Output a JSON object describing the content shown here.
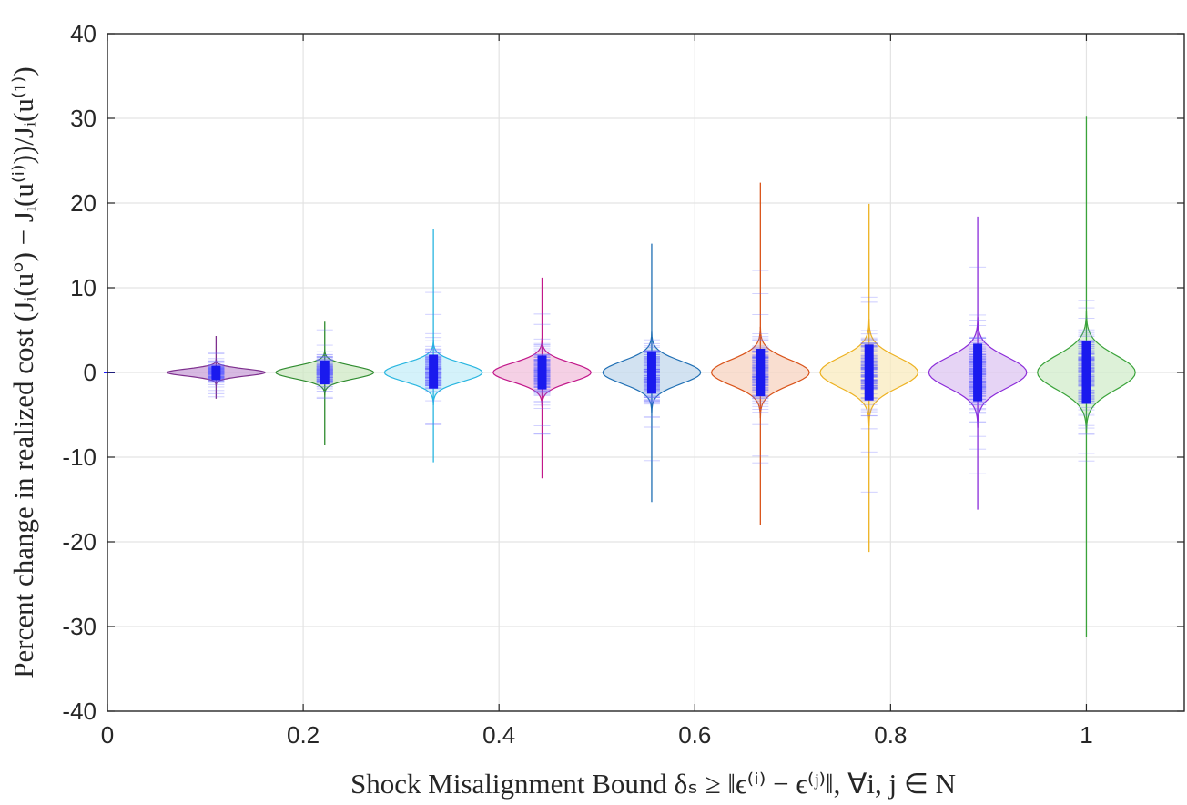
{
  "chart_data": {
    "type": "violin",
    "title": "",
    "xlabel": "Shock Misalignment Bound δₛ ≥ ‖ϵ⁽ⁱ⁾ − ϵ⁽ʲ⁾‖, ∀i, j ∈ N",
    "ylabel": "Percent change in realized cost (Jᵢ(u°) − Jᵢ(u⁽ⁱ⁾))/Jᵢ(u⁽¹⁾)",
    "xlim": [
      0,
      1.1
    ],
    "ylim": [
      -40,
      40
    ],
    "x_ticks": [
      0,
      0.2,
      0.4,
      0.6,
      0.8,
      1
    ],
    "x_tick_labels": [
      "0",
      "0.2",
      "0.4",
      "0.6",
      "0.8",
      "1"
    ],
    "y_ticks": [
      -40,
      -30,
      -20,
      -10,
      0,
      10,
      20,
      30,
      40
    ],
    "y_tick_labels": [
      "-40",
      "-30",
      "-20",
      "-10",
      "0",
      "10",
      "20",
      "30",
      "40"
    ],
    "grid": true,
    "series": [
      {
        "x": 0.111,
        "min": -3.1,
        "max": 4.3,
        "q1": -0.9,
        "q3": 0.8,
        "violin_halfwidth": 0.05,
        "violin_spread": 0.8,
        "color": "#7E2F8E",
        "fill": "#C9A2D8"
      },
      {
        "x": 0.222,
        "min": -8.6,
        "max": 6.0,
        "q1": -1.4,
        "q3": 1.4,
        "violin_halfwidth": 0.05,
        "violin_spread": 1.4,
        "color": "#2E8B2E",
        "fill": "#CFE8C4"
      },
      {
        "x": 0.333,
        "min": -10.6,
        "max": 16.9,
        "q1": -1.9,
        "q3": 2.1,
        "violin_halfwidth": 0.05,
        "violin_spread": 2.0,
        "color": "#29B6E0",
        "fill": "#C6EEF8"
      },
      {
        "x": 0.444,
        "min": -12.5,
        "max": 11.2,
        "q1": -2.0,
        "q3": 2.0,
        "violin_halfwidth": 0.05,
        "violin_spread": 2.1,
        "color": "#C2188A",
        "fill": "#F2C0DC"
      },
      {
        "x": 0.556,
        "min": -15.3,
        "max": 15.2,
        "q1": -2.5,
        "q3": 2.5,
        "violin_halfwidth": 0.05,
        "violin_spread": 2.5,
        "color": "#1F6FB4",
        "fill": "#C3D8EC"
      },
      {
        "x": 0.667,
        "min": -18.0,
        "max": 22.4,
        "q1": -2.8,
        "q3": 2.8,
        "violin_halfwidth": 0.05,
        "violin_spread": 2.8,
        "color": "#D95319",
        "fill": "#F7D3C0"
      },
      {
        "x": 0.778,
        "min": -21.2,
        "max": 19.9,
        "q1": -3.3,
        "q3": 3.3,
        "violin_halfwidth": 0.05,
        "violin_spread": 3.3,
        "color": "#EDB120",
        "fill": "#FAEBBF"
      },
      {
        "x": 0.889,
        "min": -16.2,
        "max": 18.4,
        "q1": -3.4,
        "q3": 3.4,
        "violin_halfwidth": 0.05,
        "violin_spread": 3.4,
        "color": "#8B2BD9",
        "fill": "#DDC6F2"
      },
      {
        "x": 1.0,
        "min": -31.2,
        "max": 30.3,
        "q1": -3.7,
        "q3": 3.7,
        "violin_halfwidth": 0.05,
        "violin_spread": 3.8,
        "color": "#3AA33A",
        "fill": "#D2ECCB"
      }
    ]
  }
}
